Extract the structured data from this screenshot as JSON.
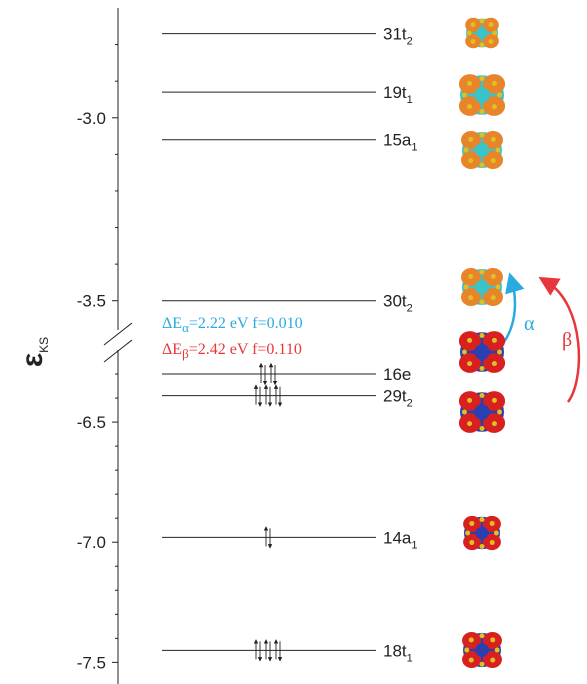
{
  "chart_data": {
    "type": "levels",
    "ylabel": "ε",
    "ylabel_sub": "KS",
    "panels": [
      {
        "ylim": [
          -3.58,
          -2.7
        ],
        "yticks": [
          {
            "value": -3.5,
            "label": "-3.5"
          },
          {
            "value": -3,
            "label": "-3.0"
          }
        ],
        "minor_yticks": [
          -3.4,
          -3.3,
          -3.2,
          -3.1,
          -2.9,
          -2.8
        ]
      },
      {
        "ylim": [
          -7.59,
          -6.2
        ],
        "yticks": [
          {
            "value": -7.5,
            "label": "-7.5"
          },
          {
            "value": -7,
            "label": "-7.0"
          },
          {
            "value": -6.5,
            "label": "-6.5"
          }
        ],
        "minor_yticks": [
          -7.4,
          -7.3,
          -7.2,
          -7.1,
          -6.9,
          -6.8,
          -6.7,
          -6.6,
          -6.4,
          -6.3
        ]
      }
    ],
    "levels": [
      {
        "label": "31t",
        "sub": "2",
        "energy": -2.77,
        "electrons": 0
      },
      {
        "label": "19t",
        "sub": "1",
        "energy": -2.93,
        "electrons": 0
      },
      {
        "label": "15a",
        "sub": "1",
        "energy": -3.06,
        "electrons": 0
      },
      {
        "label": "30t",
        "sub": "2",
        "energy": -3.5,
        "electrons": 0
      },
      {
        "label": "16e",
        "sub": "",
        "energy": -6.3,
        "electrons": 4
      },
      {
        "label": "29t",
        "sub": "2",
        "energy": -6.39,
        "electrons": 6
      },
      {
        "label": "14a",
        "sub": "1",
        "energy": -6.98,
        "electrons": 2
      },
      {
        "label": "18t",
        "sub": "1",
        "energy": -7.45,
        "electrons": 6
      }
    ],
    "transitions": [
      {
        "name": "α",
        "color": "#29aae1",
        "prefix": "ΔE",
        "sub": "α",
        "text": "=2.22 eV f=0.010"
      },
      {
        "name": "β",
        "color": "#e8373a",
        "prefix": "ΔE",
        "sub": "β",
        "text": "=2.42 eV f=0.110"
      }
    ]
  }
}
